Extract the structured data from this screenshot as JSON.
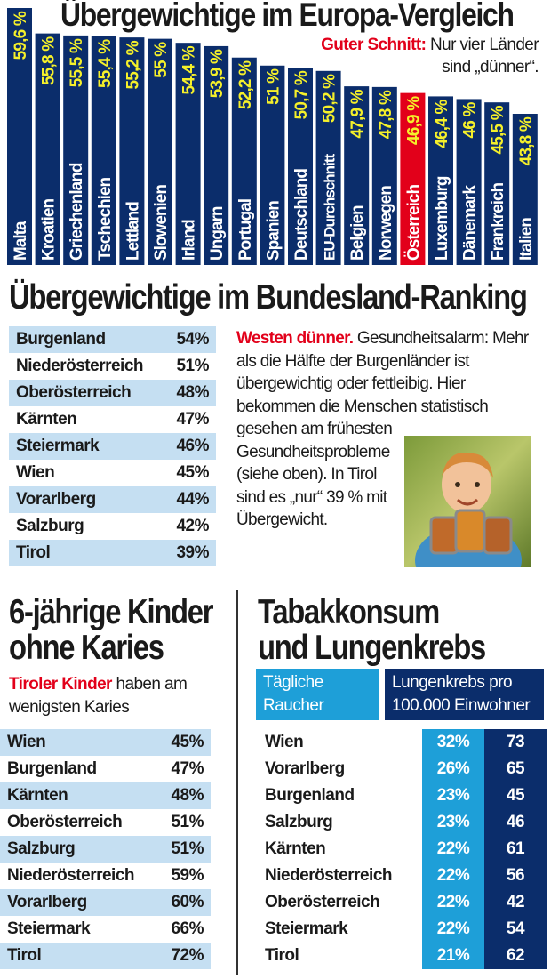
{
  "colors": {
    "navy": "#0b2d6b",
    "red": "#e2001a",
    "yellow": "#f5f02a",
    "lightblue": "#c5dff2",
    "cyan": "#1e9fd8"
  },
  "chart_data": {
    "type": "bar",
    "title": "Übergewichtige im Europa-Vergleich",
    "subtitle_highlight": "Guter Schnitt:",
    "subtitle": "Nur vier Länder sind „dünner“.",
    "categories": [
      "Malta",
      "Kroatien",
      "Griechenland",
      "Tschechien",
      "Lettland",
      "Slowenien",
      "Irland",
      "Ungarn",
      "Portugal",
      "Spanien",
      "Deutschland",
      "EU-Durchschnitt",
      "Belgien",
      "Norwegen",
      "Österreich",
      "Luxemburg",
      "Dänemark",
      "Frankreich",
      "Italien"
    ],
    "values": [
      59.6,
      55.8,
      55.5,
      55.4,
      55.2,
      55,
      54.4,
      53.9,
      52.2,
      51,
      50.7,
      50.2,
      47.9,
      47.8,
      46.9,
      46.4,
      46,
      45.5,
      43.8
    ],
    "value_labels": [
      "59,6 %",
      "55,8 %",
      "55,5 %",
      "55,4 %",
      "55,2 %",
      "55 %",
      "54,4 %",
      "53,9 %",
      "52,2 %",
      "51 %",
      "50,7 %",
      "50,2 %",
      "47,9 %",
      "47,8 %",
      "46,9 %",
      "46,4 %",
      "46 %",
      "45,5 %",
      "43,8 %"
    ],
    "highlight": "Österreich",
    "unit": "%"
  },
  "bundesland": {
    "title": "Übergewichtige im Bundesland-Ranking",
    "rows": [
      {
        "name": "Burgenland",
        "value": "54%"
      },
      {
        "name": "Niederösterreich",
        "value": "51%"
      },
      {
        "name": "Oberösterreich",
        "value": "48%"
      },
      {
        "name": "Kärnten",
        "value": "47%"
      },
      {
        "name": "Steiermark",
        "value": "46%"
      },
      {
        "name": "Wien",
        "value": "45%"
      },
      {
        "name": "Vorarlberg",
        "value": "44%"
      },
      {
        "name": "Salzburg",
        "value": "42%"
      },
      {
        "name": "Tirol",
        "value": "39%"
      }
    ],
    "text_lead": "Westen dünner.",
    "text_a": " Gesundheitsalarm: Mehr als die Hälfte der Burgenländer ist übergewichtig oder fettleibig. Hier bekommen die Menschen statistisch",
    "text_b": "gesehen am frühesten Gesundheitsprobleme (siehe oben). In Tirol sind es „nur“ 39 % mit Übergewicht."
  },
  "karies": {
    "title_line1": "6-jährige Kinder",
    "title_line2": "ohne Karies",
    "sub_lead": "Tiroler Kinder",
    "sub_text": " haben am wenigsten Karies",
    "rows": [
      {
        "name": "Wien",
        "value": "45%"
      },
      {
        "name": "Burgenland",
        "value": "47%"
      },
      {
        "name": "Kärnten",
        "value": "48%"
      },
      {
        "name": "Oberösterreich",
        "value": "51%"
      },
      {
        "name": "Salzburg",
        "value": "51%"
      },
      {
        "name": "Niederösterreich",
        "value": "59%"
      },
      {
        "name": "Vorarlberg",
        "value": "60%"
      },
      {
        "name": "Steiermark",
        "value": "66%"
      },
      {
        "name": "Tirol",
        "value": "72%"
      }
    ]
  },
  "tabak": {
    "title_line1": "Tabakkonsum",
    "title_line2": "und Lungenkrebs",
    "head1": "Tägliche Raucher",
    "head2": "Lungenkrebs pro 100.000 Einwohner",
    "rows": [
      {
        "name": "Wien",
        "smokers": "32%",
        "cancer": "73"
      },
      {
        "name": "Vorarlberg",
        "smokers": "26%",
        "cancer": "65"
      },
      {
        "name": "Burgenland",
        "smokers": "23%",
        "cancer": "45"
      },
      {
        "name": "Salzburg",
        "smokers": "23%",
        "cancer": "46"
      },
      {
        "name": "Kärnten",
        "smokers": "22%",
        "cancer": "61"
      },
      {
        "name": "Niederösterreich",
        "smokers": "22%",
        "cancer": "56"
      },
      {
        "name": "Oberösterreich",
        "smokers": "22%",
        "cancer": "42"
      },
      {
        "name": "Steiermark",
        "smokers": "22%",
        "cancer": "54"
      },
      {
        "name": "Tirol",
        "smokers": "21%",
        "cancer": "62"
      }
    ]
  }
}
